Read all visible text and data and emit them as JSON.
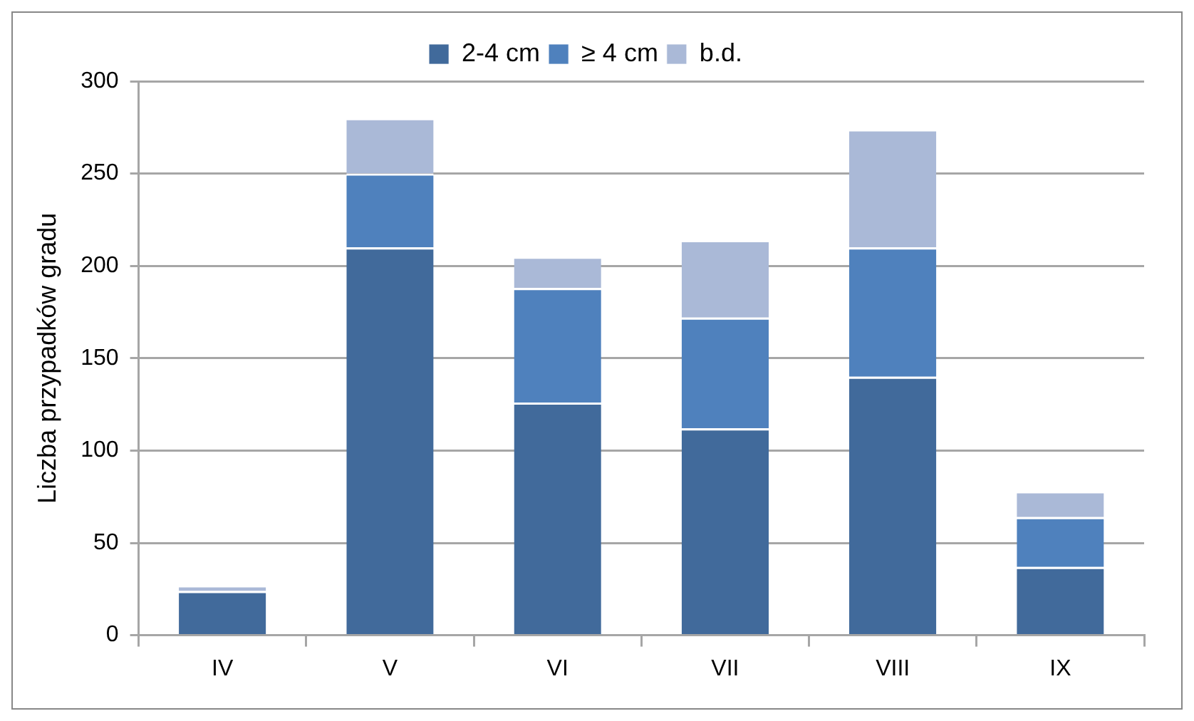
{
  "chart_data": {
    "type": "bar",
    "ylabel": "Liczba przypadków gradu",
    "categories": [
      "IV",
      "V",
      "VI",
      "VII",
      "VIII",
      "IX"
    ],
    "stacked": true,
    "series": [
      {
        "name": "2-4 cm",
        "color": "#416a9b",
        "values": [
          24,
          210,
          126,
          112,
          140,
          37
        ]
      },
      {
        "name": "≥ 4 cm",
        "color": "#4f81bd",
        "values": [
          0,
          40,
          62,
          60,
          70,
          27
        ]
      },
      {
        "name": "b.d.",
        "color": "#aab9d7",
        "values": [
          3,
          30,
          17,
          42,
          64,
          14
        ]
      }
    ],
    "ylim": [
      0,
      300
    ],
    "yticks": [
      0,
      50,
      100,
      150,
      200,
      250,
      300
    ],
    "grid": "y",
    "legend": "top"
  }
}
